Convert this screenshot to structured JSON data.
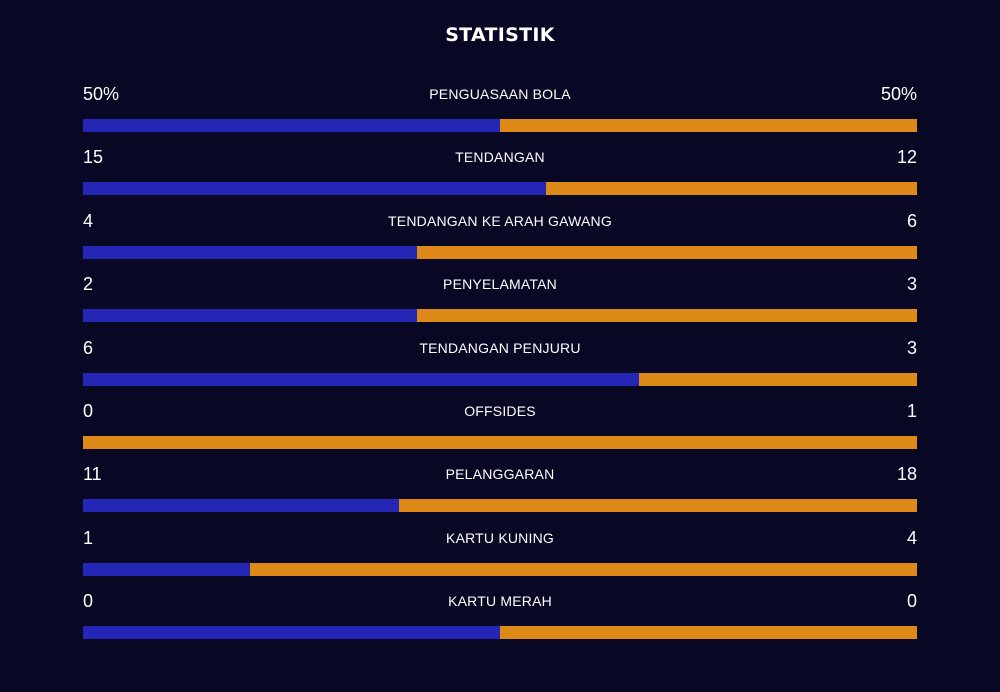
{
  "title": "STATISTIK",
  "colors": {
    "background": "#080724",
    "home": "#2426b6",
    "away": "#dd8a19",
    "text": "#ffffff"
  },
  "stats": [
    {
      "label": "PENGUASAAN BOLA",
      "left_display": "50%",
      "right_display": "50%",
      "left": 50,
      "right": 50
    },
    {
      "label": "TENDANGAN",
      "left_display": "15",
      "right_display": "12",
      "left": 15,
      "right": 12
    },
    {
      "label": "TENDANGAN KE ARAH GAWANG",
      "left_display": "4",
      "right_display": "6",
      "left": 4,
      "right": 6
    },
    {
      "label": "PENYELAMATAN",
      "left_display": "2",
      "right_display": "3",
      "left": 2,
      "right": 3
    },
    {
      "label": "TENDANGAN PENJURU",
      "left_display": "6",
      "right_display": "3",
      "left": 6,
      "right": 3
    },
    {
      "label": "OFFSIDES",
      "left_display": "0",
      "right_display": "1",
      "left": 0,
      "right": 1
    },
    {
      "label": "PELANGGARAN",
      "left_display": "11",
      "right_display": "18",
      "left": 11,
      "right": 18
    },
    {
      "label": "KARTU KUNING",
      "left_display": "1",
      "right_display": "4",
      "left": 1,
      "right": 4
    },
    {
      "label": "KARTU MERAH",
      "left_display": "0",
      "right_display": "0",
      "left": 0,
      "right": 0
    }
  ]
}
